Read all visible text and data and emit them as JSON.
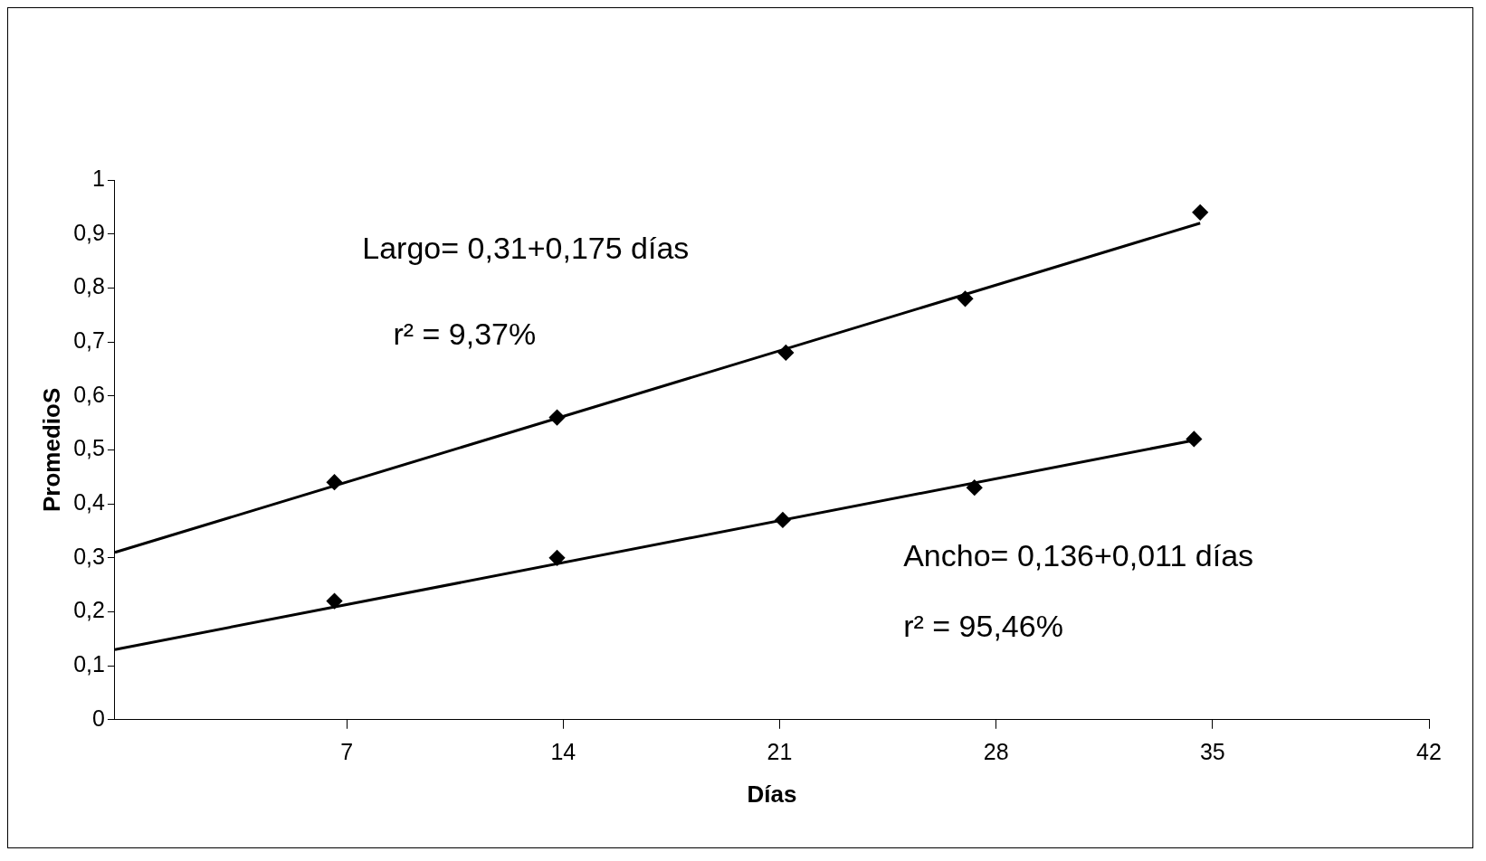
{
  "chart_data": {
    "type": "scatter",
    "xlabel": "Días",
    "ylabel": "PromedioS",
    "xlim": [
      -0.5,
      42
    ],
    "xticks": [
      7,
      14,
      21,
      28,
      35,
      42
    ],
    "ylim": [
      0,
      1
    ],
    "yticks": [
      0,
      {
        "value": 0.1,
        "label": "0,1"
      },
      {
        "value": 0.2,
        "label": "0,2"
      },
      {
        "value": 0.3,
        "label": "0,3"
      },
      {
        "value": 0.4,
        "label": "0,4"
      },
      {
        "value": 0.5,
        "label": "0,5"
      },
      {
        "value": 0.6,
        "label": "0,6"
      },
      {
        "value": 0.7,
        "label": "0,7"
      },
      {
        "value": 0.8,
        "label": "0,8"
      },
      {
        "value": 0.9,
        "label": "0,9"
      },
      1
    ],
    "grid": false,
    "legend": false,
    "marker": "diamond",
    "series": [
      {
        "type": "scatter",
        "color": "#000000",
        "x": [
          6.6,
          13.8,
          21.2,
          27.0,
          34.6
        ],
        "values": [
          0.44,
          0.56,
          0.68,
          0.78,
          0.94
        ]
      },
      {
        "type": "scatter",
        "color": "#000000",
        "x": [
          6.6,
          13.8,
          21.1,
          27.3,
          34.4
        ],
        "values": [
          0.22,
          0.3,
          0.37,
          0.43,
          0.52
        ]
      },
      {
        "type": "line",
        "color": "#000000",
        "marker": "none",
        "x": [
          -0.5,
          34.6
        ],
        "values": [
          0.31,
          0.92
        ]
      },
      {
        "type": "line",
        "color": "#000000",
        "marker": "none",
        "x": [
          -0.5,
          34.6
        ],
        "values": [
          0.13,
          0.52
        ]
      }
    ],
    "annotations": [
      "Largo= 0,31+0,175 días",
      "r² = 9,37%",
      "Ancho= 0,136+0,011 días",
      "r² = 95,46%"
    ]
  }
}
